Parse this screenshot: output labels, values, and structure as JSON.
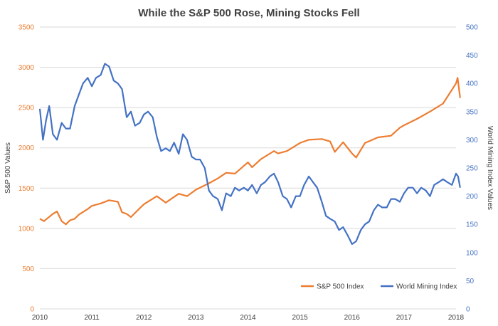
{
  "chart_data": {
    "type": "line",
    "title": "While the S&P 500 Rose, Mining Stocks Fell",
    "xlabel": "",
    "ylabel_left": "S&P 500 Values",
    "ylabel_right": "World Mining Index Values",
    "x_ticks": [
      "2010",
      "2011",
      "2012",
      "2013",
      "2014",
      "2015",
      "2016",
      "2017",
      "2018"
    ],
    "xlim": [
      2010,
      2018
    ],
    "ylim_left": [
      0,
      3500
    ],
    "ylim_right": [
      0,
      500
    ],
    "y_ticks_left": [
      "0",
      "500",
      "1000",
      "1500",
      "2000",
      "2500",
      "3000",
      "3500"
    ],
    "y_ticks_right": [
      "0",
      "50",
      "100",
      "150",
      "200",
      "250",
      "300",
      "350",
      "400",
      "450",
      "500"
    ],
    "grid": true,
    "legend_position": "bottom-right",
    "series": [
      {
        "name": "S&P 500 Index",
        "axis": "left",
        "color": "#ED7D31",
        "x": [
          2010.0,
          2010.08,
          2010.25,
          2010.33,
          2010.42,
          2010.5,
          2010.58,
          2010.67,
          2010.75,
          2010.92,
          2011.0,
          2011.17,
          2011.33,
          2011.5,
          2011.58,
          2011.67,
          2011.75,
          2011.92,
          2012.0,
          2012.25,
          2012.42,
          2012.67,
          2012.83,
          2013.0,
          2013.25,
          2013.42,
          2013.58,
          2013.75,
          2014.0,
          2014.08,
          2014.25,
          2014.5,
          2014.58,
          2014.75,
          2015.0,
          2015.17,
          2015.42,
          2015.58,
          2015.67,
          2015.83,
          2016.0,
          2016.08,
          2016.25,
          2016.5,
          2016.75,
          2016.92,
          2017.0,
          2017.25,
          2017.5,
          2017.75,
          2018.0,
          2018.03,
          2018.08
        ],
        "values": [
          1120,
          1090,
          1180,
          1210,
          1090,
          1050,
          1100,
          1120,
          1170,
          1240,
          1280,
          1310,
          1350,
          1330,
          1200,
          1180,
          1140,
          1250,
          1300,
          1400,
          1320,
          1430,
          1400,
          1480,
          1560,
          1620,
          1690,
          1680,
          1820,
          1760,
          1860,
          1960,
          1930,
          1960,
          2060,
          2100,
          2110,
          2080,
          1950,
          2070,
          1930,
          1880,
          2060,
          2130,
          2150,
          2250,
          2280,
          2360,
          2450,
          2550,
          2800,
          2870,
          2620
        ]
      },
      {
        "name": "World Mining Index",
        "axis": "right",
        "color": "#4472C4",
        "x": [
          2010.0,
          2010.06,
          2010.12,
          2010.18,
          2010.25,
          2010.33,
          2010.42,
          2010.5,
          2010.58,
          2010.67,
          2010.75,
          2010.83,
          2010.92,
          2011.0,
          2011.08,
          2011.17,
          2011.25,
          2011.33,
          2011.42,
          2011.5,
          2011.58,
          2011.67,
          2011.75,
          2011.83,
          2011.92,
          2012.0,
          2012.08,
          2012.17,
          2012.25,
          2012.33,
          2012.42,
          2012.5,
          2012.58,
          2012.67,
          2012.75,
          2012.83,
          2012.92,
          2013.0,
          2013.08,
          2013.17,
          2013.25,
          2013.33,
          2013.42,
          2013.5,
          2013.58,
          2013.67,
          2013.75,
          2013.83,
          2013.92,
          2014.0,
          2014.08,
          2014.17,
          2014.25,
          2014.33,
          2014.42,
          2014.5,
          2014.58,
          2014.67,
          2014.75,
          2014.83,
          2014.92,
          2015.0,
          2015.08,
          2015.17,
          2015.25,
          2015.33,
          2015.42,
          2015.5,
          2015.58,
          2015.67,
          2015.75,
          2015.83,
          2015.92,
          2016.0,
          2016.08,
          2016.17,
          2016.25,
          2016.33,
          2016.42,
          2016.5,
          2016.58,
          2016.67,
          2016.75,
          2016.83,
          2016.92,
          2017.0,
          2017.08,
          2017.17,
          2017.25,
          2017.33,
          2017.42,
          2017.5,
          2017.58,
          2017.67,
          2017.75,
          2017.83,
          2017.92,
          2018.0,
          2018.04,
          2018.08
        ],
        "values": [
          355,
          300,
          335,
          360,
          310,
          300,
          330,
          320,
          320,
          360,
          380,
          400,
          410,
          395,
          410,
          415,
          435,
          430,
          405,
          400,
          390,
          340,
          350,
          325,
          330,
          345,
          350,
          340,
          305,
          280,
          285,
          280,
          295,
          275,
          310,
          300,
          270,
          265,
          265,
          250,
          210,
          200,
          195,
          175,
          205,
          200,
          215,
          210,
          215,
          210,
          220,
          205,
          220,
          225,
          235,
          240,
          225,
          200,
          195,
          180,
          200,
          200,
          220,
          235,
          225,
          215,
          190,
          165,
          160,
          155,
          140,
          145,
          130,
          115,
          120,
          140,
          150,
          155,
          175,
          185,
          180,
          180,
          195,
          195,
          190,
          205,
          215,
          215,
          205,
          215,
          210,
          200,
          220,
          225,
          230,
          225,
          220,
          240,
          235,
          215
        ]
      }
    ]
  }
}
